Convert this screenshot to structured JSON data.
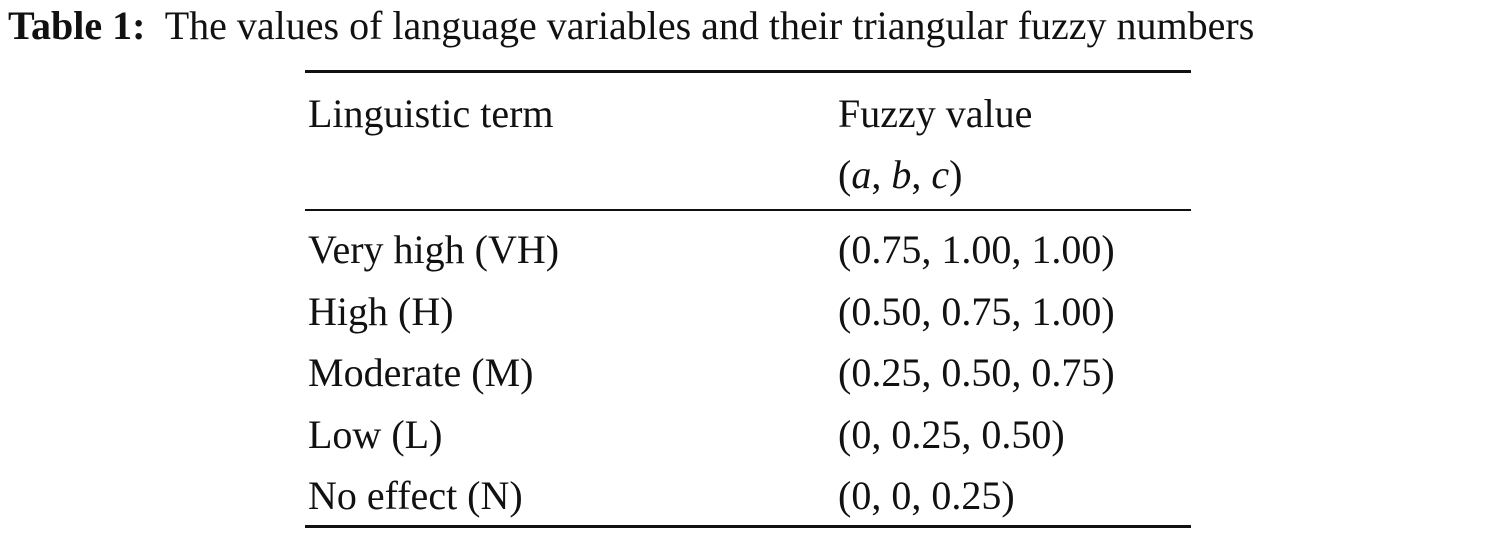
{
  "caption": {
    "label": "Table 1:",
    "text": "The values of language variables and their triangular fuzzy numbers"
  },
  "table": {
    "header": [
      "Linguistic term",
      "Fuzzy value"
    ],
    "header_sub": "(a, b, c)",
    "rows": [
      [
        "Very high (VH)",
        "(0.75, 1.00, 1.00)"
      ],
      [
        "High (H)",
        "(0.50, 0.75, 1.00)"
      ],
      [
        "Moderate (M)",
        "(0.25, 0.50, 0.75)"
      ],
      [
        "Low (L)",
        "(0, 0.25, 0.50)"
      ],
      [
        "No effect (N)",
        "(0, 0, 0.25)"
      ]
    ]
  }
}
